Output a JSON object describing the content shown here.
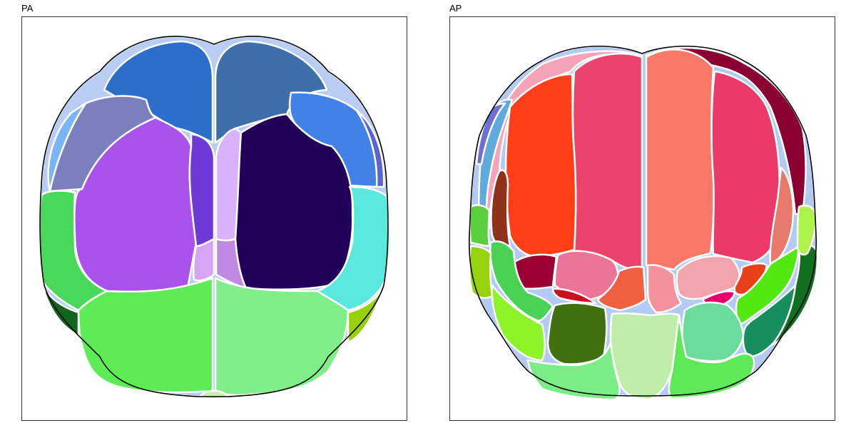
{
  "panels": [
    {
      "id": "pa",
      "label": "PA"
    },
    {
      "id": "ap",
      "label": "AP"
    }
  ],
  "colors": {
    "pa": {
      "bg_outer": "#b9cdf3",
      "superior_left": "#2b6fca",
      "superior_right": "#3f6fab",
      "lateral_left_upper": "#7a7fbd",
      "lateral_right_upper": "#4281e6",
      "side_left_blue": "#7ab4f4",
      "side_right_blue": "#5b64d4",
      "large_left_purple": "#a952ec",
      "inner_left_violet": "#6d3ad7",
      "inner_right_lilac": "#d9b2fb",
      "large_right_navy": "#21005a",
      "small_left_lilac": "#d7a4f4",
      "small_right_lilac": "#c08ae4",
      "lateral_left_green": "#49d859",
      "lateral_right_cyan": "#59e8de",
      "lower_left_green": "#5eec56",
      "lower_right_green": "#80ef8a",
      "corner_left_dark": "#11651f",
      "corner_right_lime": "#98d10a",
      "bottom_small": "#c8f0b0"
    },
    "ap": {
      "top_pink": "#f4a3b8",
      "top_maroon": "#8a0030",
      "center_left_pink": "#ec436c",
      "center_right_salmon": "#fa7868",
      "left_red_orange": "#fe3e17",
      "right_pink_red": "#ec3a68",
      "left_brown": "#8f321c",
      "right_salmon": "#e87a6c",
      "side_left_blue": "#5fa9dc",
      "side_left_indigo": "#6b70d2",
      "side_right_blue": "#b3cbf3",
      "mid_left_maroon": "#9a0034",
      "mid_left_pink": "#ec7496",
      "mid_center_orange": "#f06040",
      "mid_center_pink": "#f3929d",
      "mid_right_pink": "#f2a3ab",
      "mid_right_orange": "#e84018",
      "small_red": "#c8101e",
      "small_magenta": "#e6006a",
      "left_green_bright": "#5ad03e",
      "left_green_mid": "#49d254",
      "left_lime": "#8ef42a",
      "left_lime_dark": "#97d30c",
      "left_olive": "#41710e",
      "right_green_bright": "#53e812",
      "right_green_dark": "#117020",
      "right_teal": "#178e5e",
      "right_lime": "#aef34a",
      "right_mint": "#6cdc9c",
      "bottom_center": "#c0eeaa",
      "bottom_left": "#7cec86",
      "bottom_right": "#5eea58"
    }
  }
}
